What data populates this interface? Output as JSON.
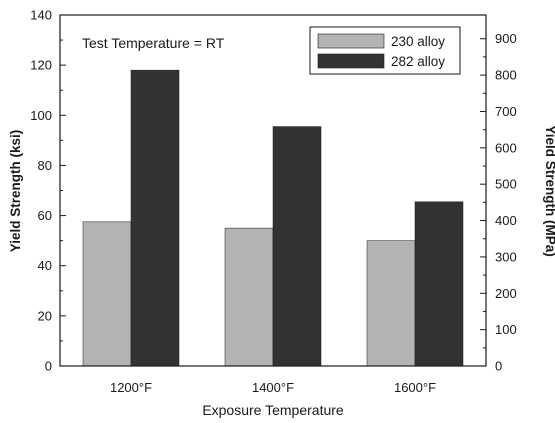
{
  "chart_data": {
    "type": "bar",
    "categories": [
      "1200°F",
      "1400°F",
      "1600°F"
    ],
    "series": [
      {
        "name": "230 alloy",
        "values": [
          57.5,
          55,
          50
        ],
        "color": "#b3b3b3"
      },
      {
        "name": "282 alloy",
        "values": [
          118,
          95.5,
          65.5
        ],
        "color": "#333333"
      }
    ],
    "annotation": "Test Temperature = RT",
    "xlabel": "Exposure Temperature",
    "ylabel": "Yield Strength (ksi)",
    "ylabel_right": "Yield Strength (MPa)",
    "ylim": [
      0,
      140
    ],
    "yticks": [
      0,
      20,
      40,
      60,
      80,
      100,
      120,
      140
    ],
    "ylim_right": [
      0,
      965.3
    ],
    "yticks_right": [
      0,
      100,
      200,
      300,
      400,
      500,
      600,
      700,
      800,
      900
    ],
    "legend_position": "top-right",
    "grid": false
  }
}
